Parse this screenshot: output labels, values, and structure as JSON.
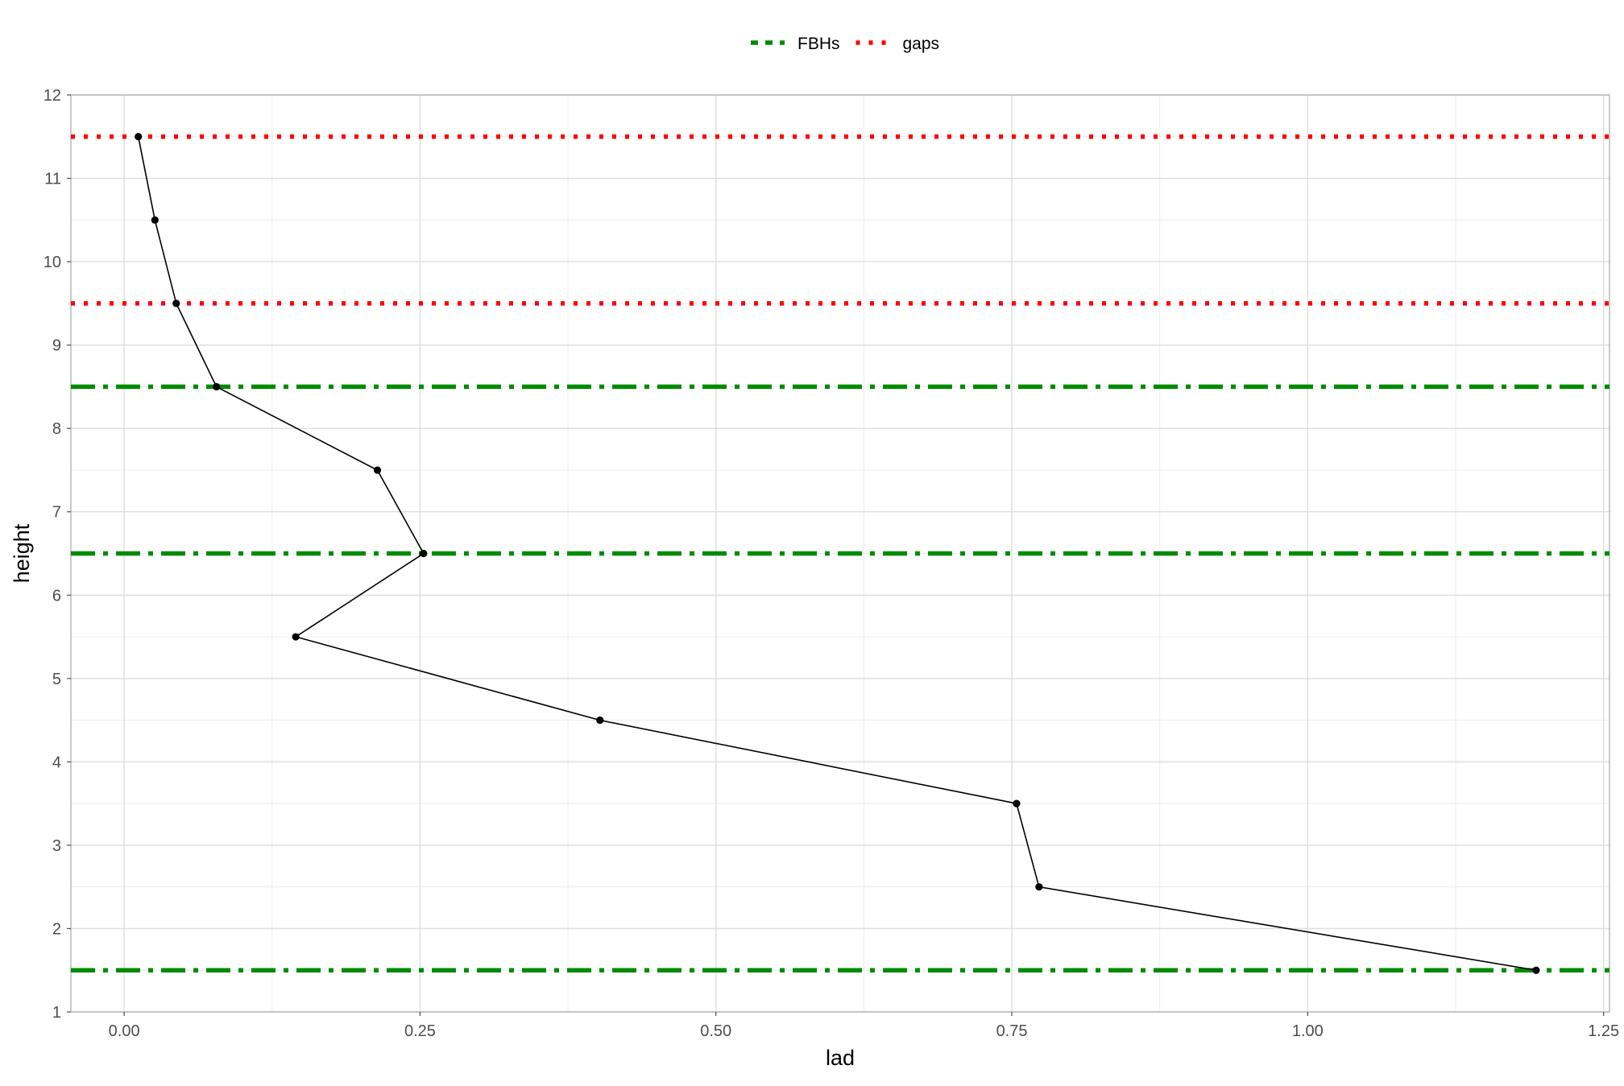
{
  "chart_data": {
    "type": "line",
    "title": "",
    "xlabel": "lad",
    "ylabel": "height",
    "xlim": [
      -0.045,
      1.255
    ],
    "ylim": [
      1,
      12
    ],
    "x_ticks": [
      0.0,
      0.25,
      0.5,
      0.75,
      1.0,
      1.25
    ],
    "x_tick_labels": [
      "0.00",
      "0.25",
      "0.50",
      "0.75",
      "1.00",
      "1.25"
    ],
    "y_ticks": [
      1,
      2,
      3,
      4,
      5,
      6,
      7,
      8,
      9,
      10,
      11,
      12
    ],
    "y_tick_labels": [
      "1",
      "2",
      "3",
      "4",
      "5",
      "6",
      "7",
      "8",
      "9",
      "10",
      "11",
      "12"
    ],
    "grid": true,
    "legend_position": "top",
    "series": [
      {
        "color": "#000000",
        "x": [
          0.012,
          0.026,
          0.044,
          0.078,
          0.214,
          0.253,
          0.145,
          0.402,
          0.754,
          0.773,
          1.193
        ],
        "y": [
          11.5,
          10.5,
          9.5,
          8.5,
          7.5,
          6.5,
          5.5,
          4.5,
          3.5,
          2.5,
          1.5
        ]
      }
    ],
    "reference_lines": [
      {
        "group": "FBHs",
        "y": 8.5
      },
      {
        "group": "FBHs",
        "y": 6.5
      },
      {
        "group": "FBHs",
        "y": 1.5
      },
      {
        "group": "gaps",
        "y": 11.5
      },
      {
        "group": "gaps",
        "y": 9.5
      }
    ],
    "legend": [
      {
        "label": "FBHs",
        "color": "#008b00",
        "style": "dashed"
      },
      {
        "label": "gaps",
        "color": "#ff0000",
        "style": "dotted"
      }
    ]
  }
}
